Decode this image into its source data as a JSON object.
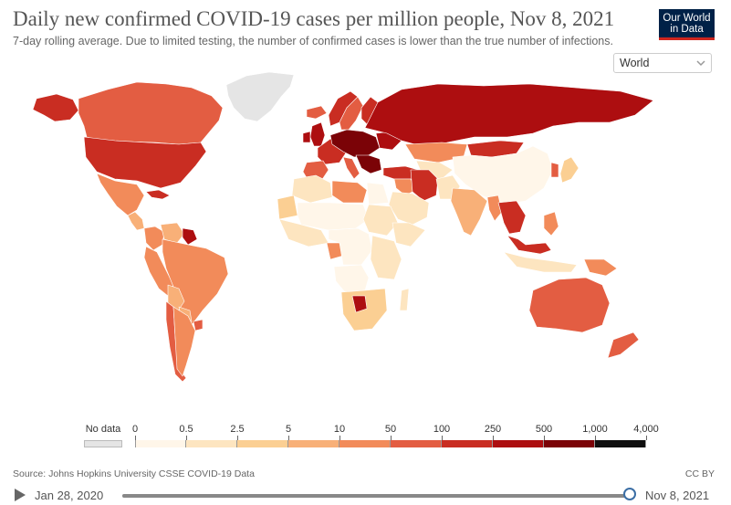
{
  "header": {
    "title": "Daily new confirmed COVID-19 cases per million people, Nov 8, 2021",
    "subtitle": "7-day rolling average. Due to limited testing, the number of confirmed cases is lower than the true number of infections.",
    "logo_line1": "Our World",
    "logo_line2": "in Data"
  },
  "controls": {
    "region": "World"
  },
  "legend": {
    "no_data_label": "No data",
    "no_data_color": "#e5e5e5",
    "bins": [
      {
        "label": "0",
        "color": "#fff6e9"
      },
      {
        "label": "0.5",
        "color": "#fde5c0"
      },
      {
        "label": "2.5",
        "color": "#fbcf93"
      },
      {
        "label": "5",
        "color": "#f8b078"
      },
      {
        "label": "10",
        "color": "#f28b5a"
      },
      {
        "label": "50",
        "color": "#e35d42"
      },
      {
        "label": "100",
        "color": "#c92d22"
      },
      {
        "label": "250",
        "color": "#ad0e10"
      },
      {
        "label": "500",
        "color": "#7b0307"
      },
      {
        "label": "1,000",
        "color": "#3d0104"
      },
      {
        "label": "4,000",
        "color": null
      }
    ],
    "last_bin_color": "#0f0f0f"
  },
  "footer": {
    "source": "Source: Johns Hopkins University CSSE COVID-19 Data",
    "license": "CC BY"
  },
  "timeline": {
    "start_date": "Jan 28, 2020",
    "end_date": "Nov 8, 2021",
    "position": 1.0
  },
  "map": {
    "regions": [
      {
        "name": "greenland",
        "bin": -1
      },
      {
        "name": "canada",
        "bin": 5
      },
      {
        "name": "alaska",
        "bin": 6
      },
      {
        "name": "usa",
        "bin": 6
      },
      {
        "name": "mexico",
        "bin": 4
      },
      {
        "name": "central-america",
        "bin": 3
      },
      {
        "name": "caribbean",
        "bin": 6
      },
      {
        "name": "colombia",
        "bin": 4
      },
      {
        "name": "venezuela",
        "bin": 3
      },
      {
        "name": "guyana",
        "bin": 7
      },
      {
        "name": "brazil",
        "bin": 4
      },
      {
        "name": "peru",
        "bin": 4
      },
      {
        "name": "bolivia",
        "bin": 3
      },
      {
        "name": "paraguay",
        "bin": 3
      },
      {
        "name": "chile",
        "bin": 5
      },
      {
        "name": "argentina",
        "bin": 4
      },
      {
        "name": "uruguay",
        "bin": 5
      },
      {
        "name": "iceland",
        "bin": 5
      },
      {
        "name": "uk",
        "bin": 7
      },
      {
        "name": "ireland",
        "bin": 7
      },
      {
        "name": "norway",
        "bin": 6
      },
      {
        "name": "sweden",
        "bin": 5
      },
      {
        "name": "finland",
        "bin": 6
      },
      {
        "name": "western-europe",
        "bin": 6
      },
      {
        "name": "iberia",
        "bin": 5
      },
      {
        "name": "central-europe",
        "bin": 8
      },
      {
        "name": "balkans",
        "bin": 8
      },
      {
        "name": "italy",
        "bin": 5
      },
      {
        "name": "ukraine",
        "bin": 7
      },
      {
        "name": "russia",
        "bin": 7
      },
      {
        "name": "turkey",
        "bin": 6
      },
      {
        "name": "kazakhstan",
        "bin": 4
      },
      {
        "name": "central-asia",
        "bin": 1
      },
      {
        "name": "mongolia",
        "bin": 6
      },
      {
        "name": "china",
        "bin": 0
      },
      {
        "name": "korea",
        "bin": 5
      },
      {
        "name": "japan",
        "bin": 2
      },
      {
        "name": "iran",
        "bin": 6
      },
      {
        "name": "iraq-syria",
        "bin": 4
      },
      {
        "name": "arabia",
        "bin": 1
      },
      {
        "name": "pakistan-afghanistan",
        "bin": 1
      },
      {
        "name": "india",
        "bin": 3
      },
      {
        "name": "myanmar",
        "bin": 4
      },
      {
        "name": "thailand-vietnam",
        "bin": 6
      },
      {
        "name": "malaysia",
        "bin": 6
      },
      {
        "name": "indonesia",
        "bin": 1
      },
      {
        "name": "philippines",
        "bin": 4
      },
      {
        "name": "papua",
        "bin": 4
      },
      {
        "name": "north-africa-west",
        "bin": 1
      },
      {
        "name": "libya",
        "bin": 4
      },
      {
        "name": "egypt",
        "bin": 0
      },
      {
        "name": "sahel",
        "bin": 0
      },
      {
        "name": "sudan",
        "bin": 1
      },
      {
        "name": "horn-of-africa",
        "bin": 1
      },
      {
        "name": "west-africa",
        "bin": 1
      },
      {
        "name": "mauritania",
        "bin": 2
      },
      {
        "name": "central-africa",
        "bin": 0
      },
      {
        "name": "gabon",
        "bin": 4
      },
      {
        "name": "east-africa",
        "bin": 1
      },
      {
        "name": "angola",
        "bin": 0
      },
      {
        "name": "southern-africa",
        "bin": 2
      },
      {
        "name": "botswana",
        "bin": 7
      },
      {
        "name": "madagascar",
        "bin": 1
      },
      {
        "name": "australia",
        "bin": 5
      },
      {
        "name": "new-zealand",
        "bin": 5
      }
    ]
  }
}
